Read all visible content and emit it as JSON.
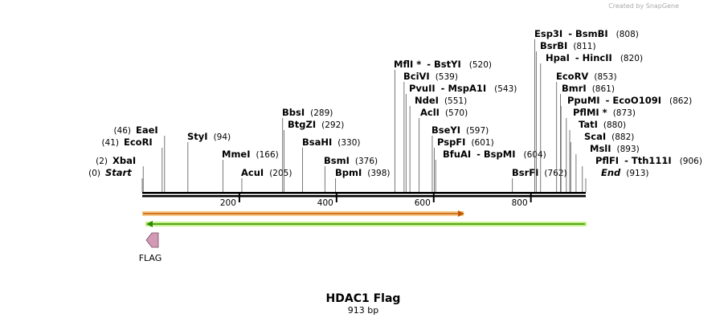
{
  "credit": "Created by SnapGene",
  "title": "HDAC1 Flag",
  "subtitle": "913 bp",
  "ruler": {
    "ticks": [
      200,
      400,
      600,
      800
    ]
  },
  "features": [
    {
      "name": "FLAG"
    }
  ],
  "enzymes": [
    {
      "name": "EaeI",
      "position": "(46)"
    },
    {
      "name": "EcoRI",
      "position": "(41)"
    },
    {
      "name": "StyI",
      "position": "(94)"
    },
    {
      "name": "XbaI",
      "position": "(2)"
    },
    {
      "name": "Start",
      "position": "(0)"
    },
    {
      "name": "MmeI",
      "position": "(166)"
    },
    {
      "name": "AcuI",
      "position": "(205)"
    },
    {
      "name": "BbsI",
      "position": "(289)"
    },
    {
      "name": "BtgZI",
      "position": "(292)"
    },
    {
      "name": "BsaHI",
      "position": "(330)"
    },
    {
      "name": "BsmI",
      "position": "(376)"
    },
    {
      "name": "BpmI",
      "position": "(398)"
    },
    {
      "name": "MflI *",
      "alt": "- BstYI",
      "position": "(520)"
    },
    {
      "name": "BciVI",
      "position": "(539)"
    },
    {
      "name": "PvuII",
      "alt": "- MspA1I",
      "position": "(543)"
    },
    {
      "name": "NdeI",
      "position": "(551)"
    },
    {
      "name": "AclI",
      "position": "(570)"
    },
    {
      "name": "BseYI",
      "position": "(597)"
    },
    {
      "name": "PspFI",
      "position": "(601)"
    },
    {
      "name": "BfuAI",
      "alt": "- BspMI",
      "position": "(604)"
    },
    {
      "name": "BsrFI",
      "position": "(762)"
    },
    {
      "name": "Esp3I",
      "alt": "- BsmBI",
      "position": "(808)"
    },
    {
      "name": "BsrBI",
      "position": "(811)"
    },
    {
      "name": "HpaI",
      "alt": "- HincII",
      "position": "(820)"
    },
    {
      "name": "EcoRV",
      "position": "(853)"
    },
    {
      "name": "BmrI",
      "position": "(861)"
    },
    {
      "name": "PpuMI",
      "alt": "- EcoO109I",
      "position": "(862)"
    },
    {
      "name": "PflMI *",
      "position": "(873)"
    },
    {
      "name": "TatI",
      "position": "(880)"
    },
    {
      "name": "ScaI",
      "position": "(882)"
    },
    {
      "name": "MslI",
      "position": "(893)"
    },
    {
      "name": "PflFI",
      "alt": "- Tth111I",
      "position": "(906)"
    },
    {
      "name": "End",
      "position": "(913)"
    }
  ]
}
